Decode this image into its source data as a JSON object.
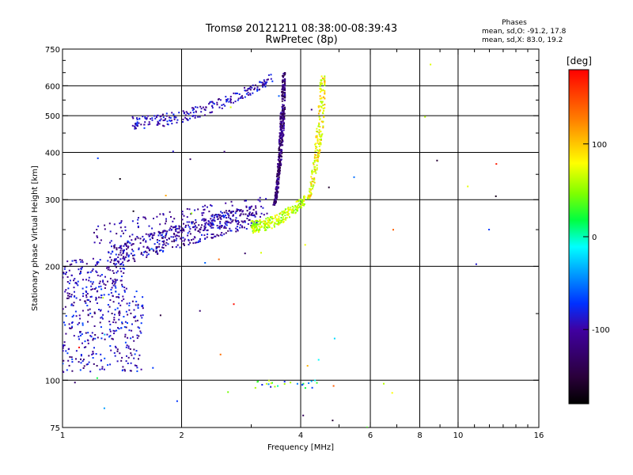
{
  "chart_data": {
    "type": "scatter",
    "title": "Tromsø 20121211 08:38:00-08:39:43",
    "subtitle": "RwPretec (8p)",
    "stats": {
      "heading": "Phases",
      "line_o": "mean, sd,O: -91.2, 17.8",
      "line_x": "mean, sd,X: 83.0, 19.2"
    },
    "xlabel": "Frequency [MHz]",
    "ylabel": "Stationary phase Virtual Height [km]",
    "x_scale": "log",
    "y_scale": "log",
    "xlim": [
      1,
      16
    ],
    "ylim": [
      75,
      750
    ],
    "x_ticks": [
      1,
      2,
      4,
      6,
      8,
      10,
      16
    ],
    "x_tick_labels": [
      "1",
      "2",
      "4",
      "6",
      "8",
      "10",
      "16"
    ],
    "y_ticks": [
      75,
      100,
      200,
      300,
      400,
      500,
      600,
      750
    ],
    "y_tick_labels": [
      "75",
      "100",
      "200",
      "300",
      "400",
      "500",
      "600",
      "750"
    ],
    "x_gridlines": [
      2,
      4,
      6,
      8,
      10
    ],
    "y_gridlines": [
      100,
      200,
      300,
      400,
      500,
      600
    ],
    "grid": true,
    "colorbar": {
      "label": "[deg]",
      "range": [
        -180,
        180
      ],
      "ticks": [
        -100,
        0,
        100
      ],
      "tick_labels": [
        "-100",
        "0",
        "100"
      ]
    },
    "point_clusters": [
      {
        "name": "low-frequency lower trace",
        "x_range": [
          1.0,
          1.6
        ],
        "y_range": [
          105,
          175
        ],
        "phase_range": [
          -130,
          -60
        ],
        "count": 300
      },
      {
        "name": "low-frequency mid trace",
        "x_range": [
          1.0,
          1.45
        ],
        "y_range": [
          165,
          210
        ],
        "phase_range": [
          -120,
          -70
        ],
        "count": 150
      },
      {
        "name": "O-trace floor",
        "x_range": [
          1.3,
          3.1
        ],
        "y_range": [
          210,
          290
        ],
        "phase_range": [
          -130,
          -70
        ],
        "count": 450
      },
      {
        "name": "O-trace ridge",
        "x_range": [
          1.2,
          3.3
        ],
        "y_range": [
          240,
          300
        ],
        "phase_range": [
          -120,
          -80
        ],
        "count": 150
      },
      {
        "name": "O-trace cusp",
        "x_range": [
          3.3,
          3.65
        ],
        "y_range": [
          290,
          650
        ],
        "phase_range": [
          -150,
          -90
        ],
        "count": 400
      },
      {
        "name": "upper trace",
        "x_range": [
          1.5,
          3.4
        ],
        "y_range": [
          460,
          650
        ],
        "phase_range": [
          -120,
          -70
        ],
        "count": 220
      },
      {
        "name": "X-trace floor",
        "x_range": [
          3.0,
          4.1
        ],
        "y_range": [
          245,
          310
        ],
        "phase_range": [
          40,
          110
        ],
        "count": 250
      },
      {
        "name": "X-trace cusp",
        "x_range": [
          3.9,
          4.6
        ],
        "y_range": [
          300,
          640
        ],
        "phase_range": [
          60,
          130
        ],
        "count": 200
      },
      {
        "name": "E-region echoes",
        "x_range": [
          3.0,
          4.5
        ],
        "y_range": [
          95,
          100
        ],
        "phase_range": [
          -120,
          110
        ],
        "count": 25
      },
      {
        "name": "sparse noise",
        "x_range": [
          1.0,
          13.0
        ],
        "y_range": [
          75,
          700
        ],
        "phase_range": [
          -180,
          180
        ],
        "count": 55
      }
    ]
  }
}
